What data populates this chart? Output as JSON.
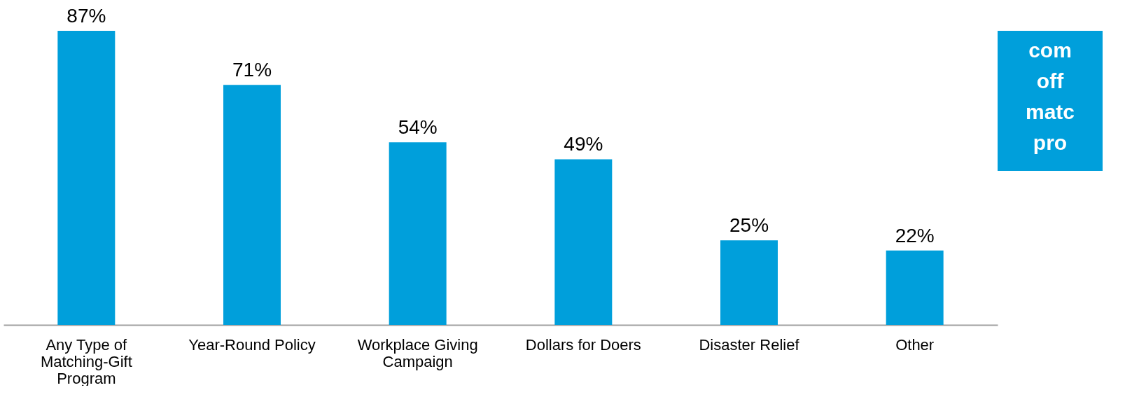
{
  "chart_data": {
    "type": "bar",
    "categories": [
      "Any Type of Matching-Gift Program",
      "Year-Round Policy",
      "Workplace Giving Campaign",
      "Dollars for Doers",
      "Disaster Relief",
      "Other"
    ],
    "values": [
      87,
      71,
      54,
      49,
      25,
      22
    ],
    "color": "#009fdb",
    "value_labels": [
      "87%",
      "71%",
      "54%",
      "49%",
      "25%",
      "22%"
    ],
    "annotations": [
      "com",
      "off",
      "matc",
      "pro"
    ]
  }
}
